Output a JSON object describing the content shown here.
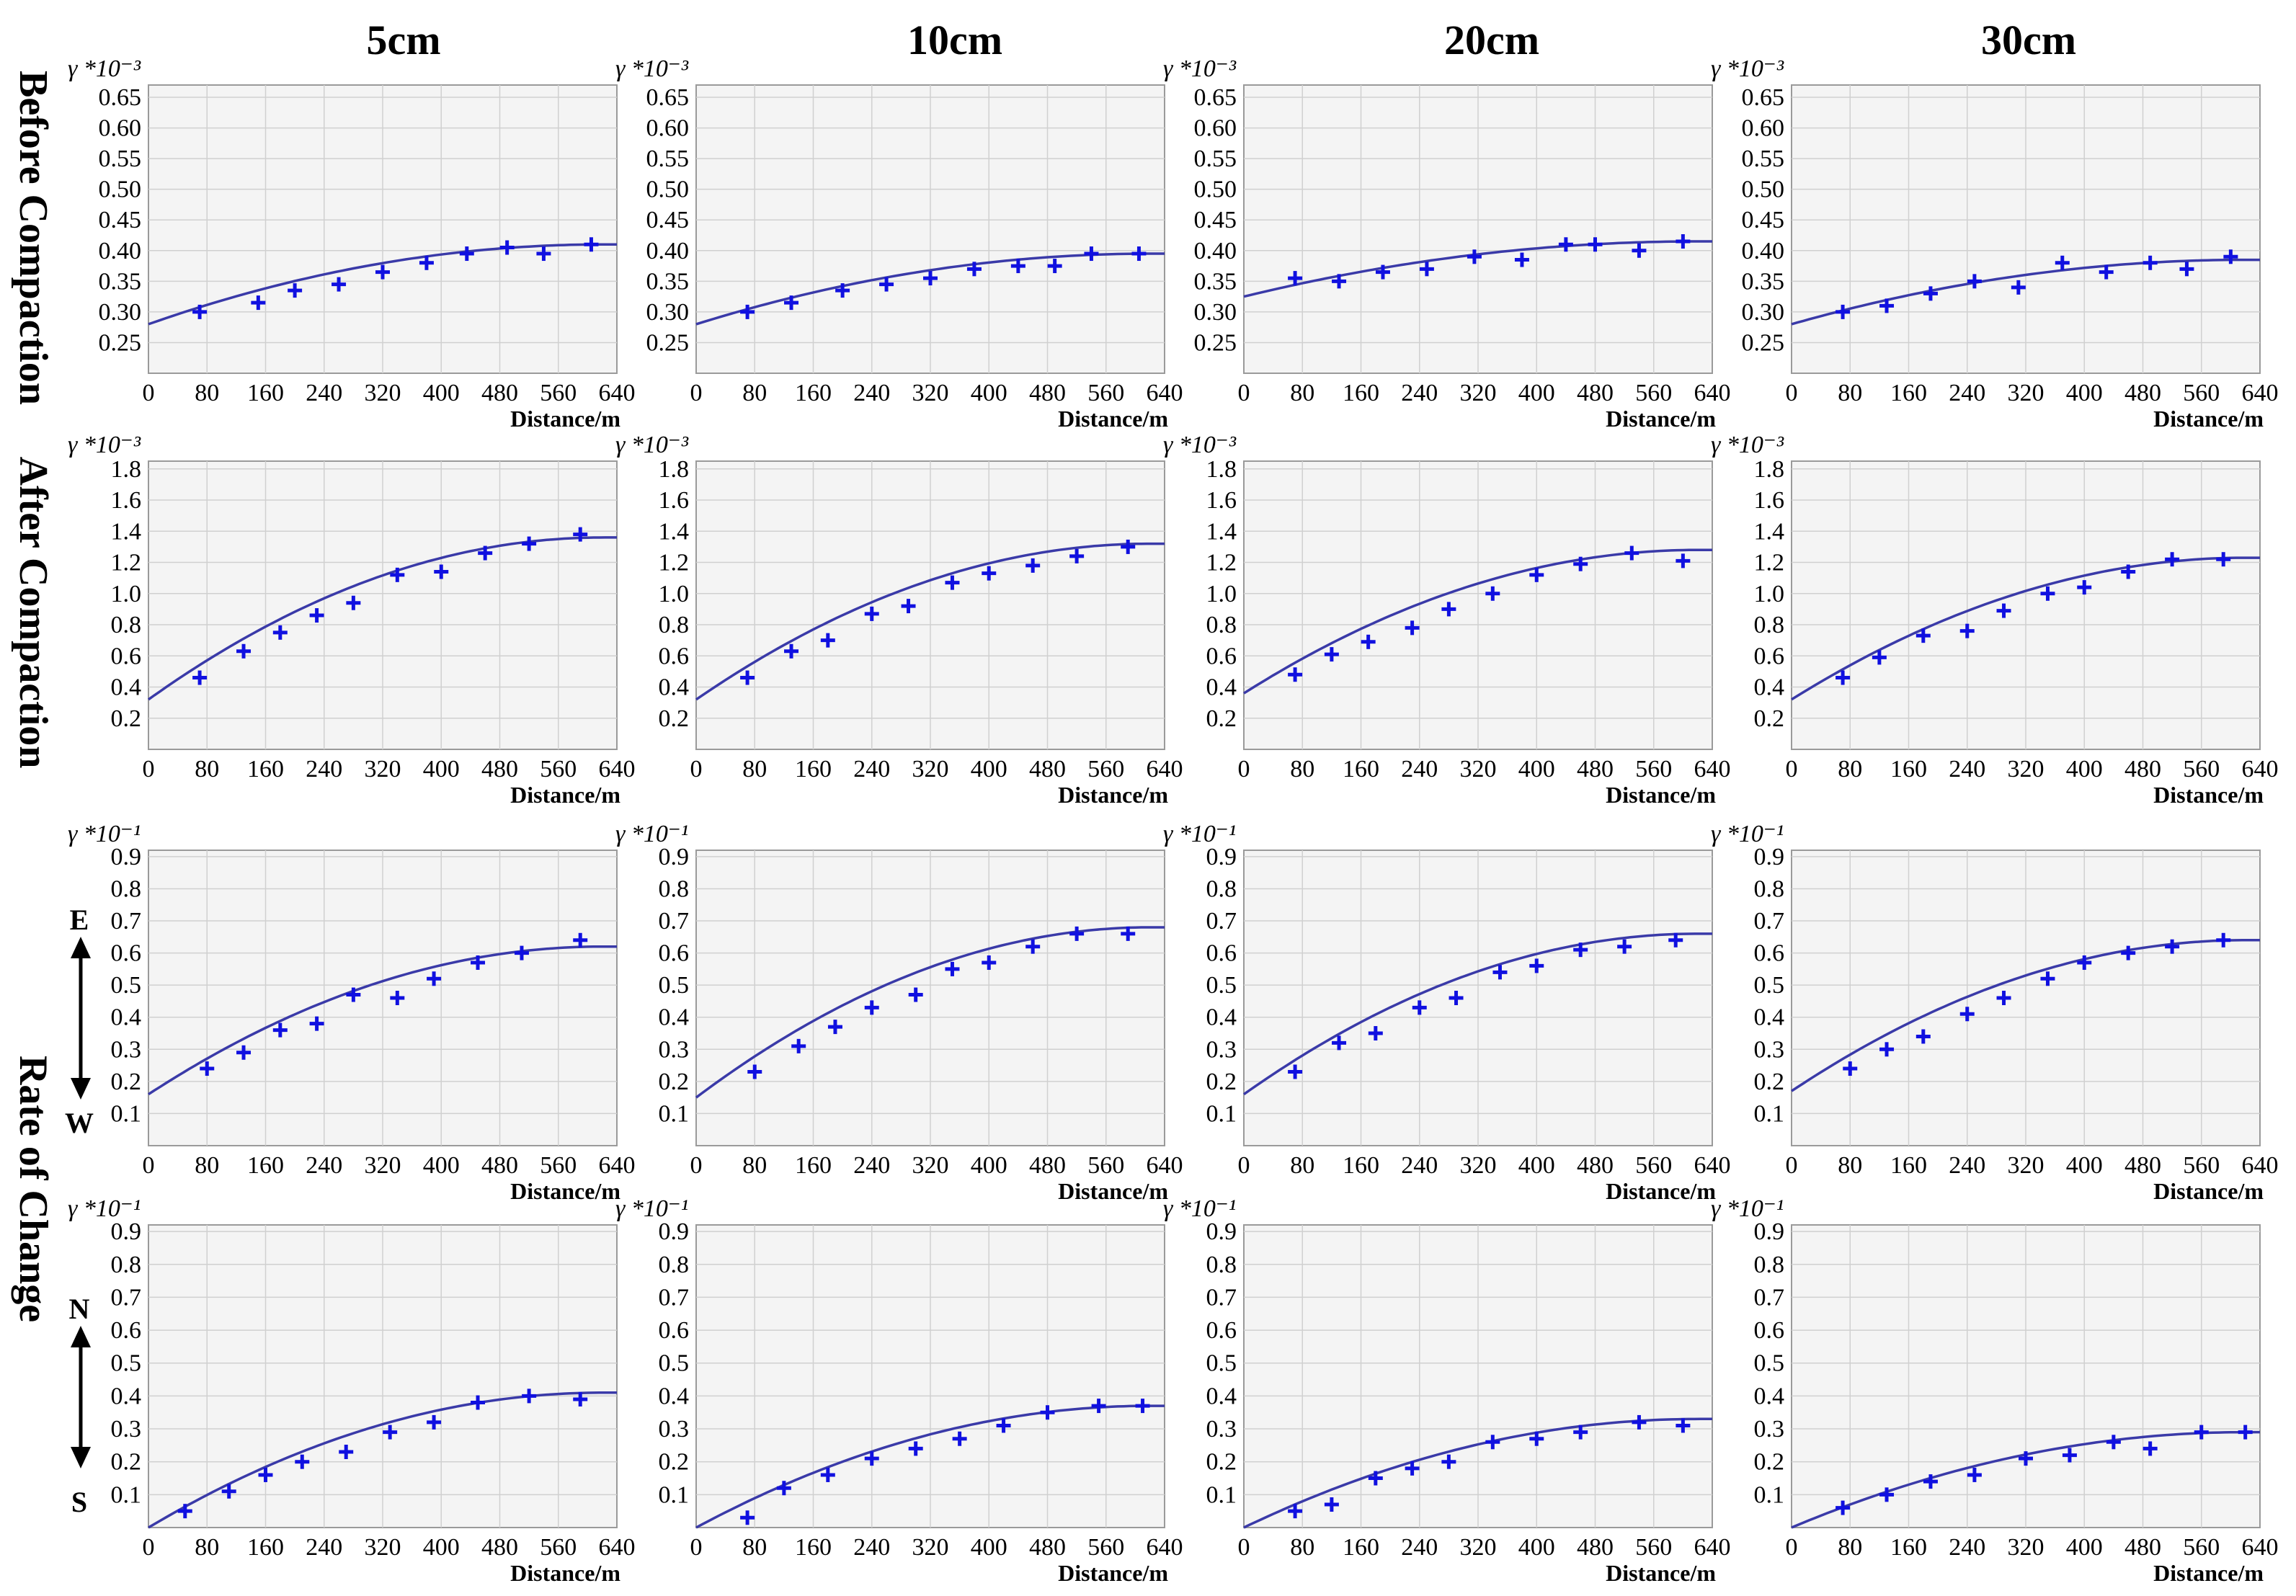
{
  "column_titles": [
    "5cm",
    "10cm",
    "20cm",
    "30cm"
  ],
  "row_labels": [
    "Before Compaction",
    "After Compaction",
    "Rate of Change"
  ],
  "direction_labels": {
    "ew": [
      "E",
      "W"
    ],
    "ns": [
      "N",
      "S"
    ]
  },
  "axis": {
    "xlabel": "Distance/m",
    "xticks": [
      0,
      80,
      160,
      240,
      320,
      400,
      480,
      560,
      640
    ],
    "ylabel_before": "γ *10⁻³",
    "ylabel_after": "γ *10⁻³",
    "ylabel_rate": "γ *10⁻¹",
    "yticks_before": [
      "0.25",
      "0.30",
      "0.35",
      "0.40",
      "0.45",
      "0.50",
      "0.55",
      "0.60",
      "0.65"
    ],
    "yticks_after": [
      "0.2",
      "0.4",
      "0.6",
      "0.8",
      "1.0",
      "1.2",
      "1.4",
      "1.6",
      "1.8"
    ],
    "yticks_rate": [
      "0.1",
      "0.2",
      "0.3",
      "0.4",
      "0.5",
      "0.6",
      "0.7",
      "0.8",
      "0.9"
    ]
  },
  "chart_data": [
    {
      "type": "scatter",
      "row": "Before Compaction",
      "col": "5cm",
      "xlim": [
        0,
        640
      ],
      "ylim": [
        0.2,
        0.67
      ],
      "x": [
        70,
        150,
        200,
        260,
        320,
        380,
        435,
        490,
        540,
        605
      ],
      "y": [
        0.3,
        0.315,
        0.335,
        0.345,
        0.365,
        0.38,
        0.395,
        0.405,
        0.395,
        0.41
      ],
      "fit": {
        "y0": 0.28,
        "ymax": 0.41,
        "xmax": 620
      }
    },
    {
      "type": "scatter",
      "row": "Before Compaction",
      "col": "10cm",
      "xlim": [
        0,
        640
      ],
      "ylim": [
        0.2,
        0.67
      ],
      "x": [
        70,
        130,
        200,
        260,
        320,
        380,
        440,
        490,
        540,
        605
      ],
      "y": [
        0.3,
        0.315,
        0.335,
        0.345,
        0.355,
        0.37,
        0.375,
        0.375,
        0.395,
        0.395
      ],
      "fit": {
        "y0": 0.28,
        "ymax": 0.395,
        "xmax": 620
      }
    },
    {
      "type": "scatter",
      "row": "Before Compaction",
      "col": "20cm",
      "xlim": [
        0,
        640
      ],
      "ylim": [
        0.2,
        0.67
      ],
      "x": [
        70,
        130,
        190,
        250,
        315,
        380,
        440,
        480,
        540,
        600
      ],
      "y": [
        0.355,
        0.35,
        0.365,
        0.37,
        0.39,
        0.385,
        0.41,
        0.41,
        0.4,
        0.415
      ],
      "fit": {
        "y0": 0.325,
        "ymax": 0.415,
        "xmax": 620
      }
    },
    {
      "type": "scatter",
      "row": "Before Compaction",
      "col": "30cm",
      "xlim": [
        0,
        640
      ],
      "ylim": [
        0.2,
        0.67
      ],
      "x": [
        70,
        130,
        190,
        250,
        310,
        370,
        430,
        490,
        540,
        600
      ],
      "y": [
        0.3,
        0.31,
        0.33,
        0.35,
        0.34,
        0.38,
        0.365,
        0.38,
        0.37,
        0.39
      ],
      "fit": {
        "y0": 0.28,
        "ymax": 0.385,
        "xmax": 620
      }
    },
    {
      "type": "scatter",
      "row": "After Compaction",
      "col": "5cm",
      "xlim": [
        0,
        640
      ],
      "ylim": [
        0,
        1.85
      ],
      "x": [
        70,
        130,
        180,
        230,
        280,
        340,
        400,
        460,
        520,
        590
      ],
      "y": [
        0.46,
        0.63,
        0.75,
        0.86,
        0.94,
        1.12,
        1.14,
        1.26,
        1.32,
        1.38
      ],
      "fit": {
        "y0": 0.32,
        "ymax": 1.36,
        "xmax": 620
      }
    },
    {
      "type": "scatter",
      "row": "After Compaction",
      "col": "10cm",
      "xlim": [
        0,
        640
      ],
      "ylim": [
        0,
        1.85
      ],
      "x": [
        70,
        130,
        180,
        240,
        290,
        350,
        400,
        460,
        520,
        590
      ],
      "y": [
        0.46,
        0.63,
        0.7,
        0.87,
        0.92,
        1.07,
        1.13,
        1.18,
        1.24,
        1.3
      ],
      "fit": {
        "y0": 0.32,
        "ymax": 1.32,
        "xmax": 620
      }
    },
    {
      "type": "scatter",
      "row": "After Compaction",
      "col": "20cm",
      "xlim": [
        0,
        640
      ],
      "ylim": [
        0,
        1.85
      ],
      "x": [
        70,
        120,
        170,
        230,
        280,
        340,
        400,
        460,
        530,
        600
      ],
      "y": [
        0.48,
        0.61,
        0.69,
        0.78,
        0.9,
        1.0,
        1.12,
        1.19,
        1.26,
        1.21
      ],
      "fit": {
        "y0": 0.36,
        "ymax": 1.28,
        "xmax": 620
      }
    },
    {
      "type": "scatter",
      "row": "After Compaction",
      "col": "30cm",
      "xlim": [
        0,
        640
      ],
      "ylim": [
        0,
        1.85
      ],
      "x": [
        70,
        120,
        180,
        240,
        290,
        350,
        400,
        460,
        520,
        590
      ],
      "y": [
        0.46,
        0.59,
        0.73,
        0.76,
        0.89,
        1.0,
        1.04,
        1.14,
        1.22,
        1.22
      ],
      "fit": {
        "y0": 0.32,
        "ymax": 1.23,
        "xmax": 620
      }
    },
    {
      "type": "scatter",
      "row": "Rate of Change E-W",
      "col": "5cm",
      "xlim": [
        0,
        640
      ],
      "ylim": [
        0,
        0.92
      ],
      "x": [
        80,
        130,
        180,
        230,
        280,
        340,
        390,
        450,
        510,
        590
      ],
      "y": [
        0.24,
        0.29,
        0.36,
        0.38,
        0.47,
        0.46,
        0.52,
        0.57,
        0.6,
        0.64
      ],
      "fit": {
        "y0": 0.16,
        "ymax": 0.62,
        "xmax": 620
      }
    },
    {
      "type": "scatter",
      "row": "Rate of Change E-W",
      "col": "10cm",
      "xlim": [
        0,
        640
      ],
      "ylim": [
        0,
        0.92
      ],
      "x": [
        80,
        140,
        190,
        240,
        300,
        350,
        400,
        460,
        520,
        590
      ],
      "y": [
        0.23,
        0.31,
        0.37,
        0.43,
        0.47,
        0.55,
        0.57,
        0.62,
        0.66,
        0.66
      ],
      "fit": {
        "y0": 0.15,
        "ymax": 0.68,
        "xmax": 620
      }
    },
    {
      "type": "scatter",
      "row": "Rate of Change E-W",
      "col": "20cm",
      "xlim": [
        0,
        640
      ],
      "ylim": [
        0,
        0.92
      ],
      "x": [
        70,
        130,
        180,
        240,
        290,
        350,
        400,
        460,
        520,
        590
      ],
      "y": [
        0.23,
        0.32,
        0.35,
        0.43,
        0.46,
        0.54,
        0.56,
        0.61,
        0.62,
        0.64
      ],
      "fit": {
        "y0": 0.16,
        "ymax": 0.66,
        "xmax": 620
      }
    },
    {
      "type": "scatter",
      "row": "Rate of Change E-W",
      "col": "30cm",
      "xlim": [
        0,
        640
      ],
      "ylim": [
        0,
        0.92
      ],
      "x": [
        80,
        130,
        180,
        240,
        290,
        350,
        400,
        460,
        520,
        590
      ],
      "y": [
        0.24,
        0.3,
        0.34,
        0.41,
        0.46,
        0.52,
        0.57,
        0.6,
        0.62,
        0.64
      ],
      "fit": {
        "y0": 0.17,
        "ymax": 0.64,
        "xmax": 620
      }
    },
    {
      "type": "scatter",
      "row": "Rate of Change N-S",
      "col": "5cm",
      "xlim": [
        0,
        640
      ],
      "ylim": [
        0,
        0.92
      ],
      "x": [
        50,
        110,
        160,
        210,
        270,
        330,
        390,
        450,
        520,
        590
      ],
      "y": [
        0.05,
        0.11,
        0.16,
        0.2,
        0.23,
        0.29,
        0.32,
        0.38,
        0.4,
        0.39
      ],
      "fit": {
        "y0": 0.0,
        "ymax": 0.41,
        "xmax": 620
      }
    },
    {
      "type": "scatter",
      "row": "Rate of Change N-S",
      "col": "10cm",
      "xlim": [
        0,
        640
      ],
      "ylim": [
        0,
        0.92
      ],
      "x": [
        70,
        120,
        180,
        240,
        300,
        360,
        420,
        480,
        550,
        610
      ],
      "y": [
        0.03,
        0.12,
        0.16,
        0.21,
        0.24,
        0.27,
        0.31,
        0.35,
        0.37,
        0.37
      ],
      "fit": {
        "y0": 0.0,
        "ymax": 0.37,
        "xmax": 620
      }
    },
    {
      "type": "scatter",
      "row": "Rate of Change N-S",
      "col": "20cm",
      "xlim": [
        0,
        640
      ],
      "ylim": [
        0,
        0.92
      ],
      "x": [
        70,
        120,
        180,
        230,
        280,
        340,
        400,
        460,
        540,
        600
      ],
      "y": [
        0.05,
        0.07,
        0.15,
        0.18,
        0.2,
        0.26,
        0.27,
        0.29,
        0.32,
        0.31
      ],
      "fit": {
        "y0": 0.0,
        "ymax": 0.33,
        "xmax": 620
      }
    },
    {
      "type": "scatter",
      "row": "Rate of Change N-S",
      "col": "30cm",
      "xlim": [
        0,
        640
      ],
      "ylim": [
        0,
        0.92
      ],
      "x": [
        70,
        130,
        190,
        250,
        320,
        380,
        440,
        490,
        560,
        620
      ],
      "y": [
        0.06,
        0.1,
        0.14,
        0.16,
        0.21,
        0.22,
        0.26,
        0.24,
        0.29,
        0.29
      ],
      "fit": {
        "y0": 0.0,
        "ymax": 0.29,
        "xmax": 620
      }
    }
  ]
}
